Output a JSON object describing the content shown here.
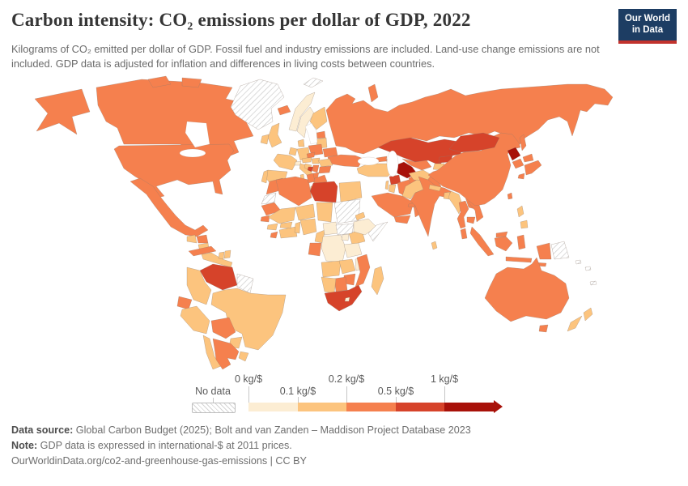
{
  "header": {
    "title": "Carbon intensity: CO₂ emissions per dollar of GDP, 2022",
    "subtitle": "Kilograms of CO₂ emitted per dollar of GDP. Fossil fuel and industry emissions are included. Land-use change emissions are not included. GDP data is adjusted for inflation and differences in living costs between countries.",
    "logo": {
      "line1": "Our World",
      "line2": "in Data",
      "bg_color": "#1d3d63",
      "accent_color": "#c2322d"
    }
  },
  "legend": {
    "no_data_label": "No data",
    "ticks": [
      "0 kg/$",
      "0.1 kg/$",
      "0.2 kg/$",
      "0.5 kg/$",
      "1 kg/$"
    ]
  },
  "footer": {
    "source_label": "Data source:",
    "source_text": " Global Carbon Budget (2025); Bolt and van Zanden – Maddison Project Database 2023",
    "note_label": "Note:",
    "note_text": " GDP data is expressed in international-$ at 2011 prices.",
    "link_text": "OurWorldinData.org/co2-and-greenhouse-gas-emissions | CC BY"
  },
  "chart_data": {
    "type": "choropleth_map",
    "title": "Carbon intensity: CO₂ emissions per dollar of GDP",
    "year": 2022,
    "unit": "kg CO₂ per international-$ of GDP",
    "legend_position": "bottom",
    "bins": [
      {
        "key": "0-0.1",
        "label": "0 kg/$ – 0.1 kg/$",
        "color": "#fcedd3"
      },
      {
        "key": "0.1-0.2",
        "label": "0.1 kg/$ – 0.2 kg/$",
        "color": "#fcc47e"
      },
      {
        "key": "0.2-0.5",
        "label": "0.2 kg/$ – 0.5 kg/$",
        "color": "#f5804e"
      },
      {
        "key": "0.5-1",
        "label": "0.5 kg/$ – 1 kg/$",
        "color": "#d6432a"
      },
      {
        "key": ">1",
        "label": "> 1 kg/$",
        "color": "#a81109"
      },
      {
        "key": "no-data",
        "label": "No data",
        "color": "hatch"
      }
    ],
    "countries": {
      "Canada": "0.2-0.5",
      "United States": "0.2-0.5",
      "Mexico": "0.2-0.5",
      "Greenland": "no-data",
      "Iceland": "0.2-0.5",
      "Guatemala": "0.1-0.2",
      "Honduras": "0.2-0.5",
      "Nicaragua": "0.1-0.2",
      "Costa Rica": "0.1-0.2",
      "Panama": "0.1-0.2",
      "Cuba": "0.2-0.5",
      "Haiti": "0.1-0.2",
      "Dominican Republic": "0.1-0.2",
      "Venezuela": "0.5-1",
      "Colombia": "0.1-0.2",
      "Guyana": "no-data",
      "Suriname": "no-data",
      "Ecuador": "0.2-0.5",
      "Peru": "0.1-0.2",
      "Brazil": "0.1-0.2",
      "Bolivia": "0.2-0.5",
      "Paraguay": "0.1-0.2",
      "Uruguay": "0.1-0.2",
      "Chile": "0.1-0.2",
      "Argentina": "0.2-0.5",
      "Norway": "0-0.1",
      "Sweden": "0-0.1",
      "Finland": "0.1-0.2",
      "Denmark": "0.1-0.2",
      "United Kingdom": "0.1-0.2",
      "Ireland": "0.1-0.2",
      "France": "0.1-0.2",
      "Spain": "0.1-0.2",
      "Portugal": "0.1-0.2",
      "Italy": "0.1-0.2",
      "Germany": "0.1-0.2",
      "Netherlands": "0.1-0.2",
      "Belgium": "0.1-0.2",
      "Switzerland": "0-0.1",
      "Austria": "0.1-0.2",
      "Czechia": "0.2-0.5",
      "Slovakia": "0.2-0.5",
      "Poland": "0.2-0.5",
      "Hungary": "0.1-0.2",
      "Romania": "0.1-0.2",
      "Croatia": "0.1-0.2",
      "Bosnia and Herzegovina": "0.5-1",
      "Serbia": "0.2-0.5",
      "Albania": "0.2-0.5",
      "North Macedonia": "0.2-0.5",
      "Bulgaria": "0.2-0.5",
      "Greece": "0.2-0.5",
      "Estonia": "0.2-0.5",
      "Latvia": "0.1-0.2",
      "Lithuania": "0.1-0.2",
      "Belarus": "0.2-0.5",
      "Ukraine": "0.2-0.5",
      "Moldova": "0.2-0.5",
      "Russia": "0.2-0.5",
      "Svalbard": "no-data",
      "Turkey": "0.1-0.2",
      "Georgia": "0.2-0.5",
      "Armenia": "0.2-0.5",
      "Azerbaijan": "0.2-0.5",
      "Syria": "0.5-1",
      "Israel": "0.1-0.2",
      "Jordan": "0.1-0.2",
      "Iraq": "0.2-0.5",
      "Iran": "0.2-0.5",
      "Saudi Arabia": "0.2-0.5",
      "Yemen": "0.2-0.5",
      "Oman": "0.2-0.5",
      "United Arab Emirates": "0.2-0.5",
      "Kuwait": "0.2-0.5",
      "Qatar": "0.2-0.5",
      "Kazakhstan": "0.5-1",
      "Uzbekistan": "0.2-0.5",
      "Turkmenistan": ">1",
      "Kyrgyzstan": "0.5-1",
      "Tajikistan": "0.1-0.2",
      "Afghanistan": "0.1-0.2",
      "Pakistan": "0.1-0.2",
      "India": "0.2-0.5",
      "Nepal": "0.1-0.2",
      "Bangladesh": "0.1-0.2",
      "Sri Lanka": "0.1-0.2",
      "Myanmar": "0.1-0.2",
      "Thailand": "0.2-0.5",
      "Laos": "0.2-0.5",
      "Vietnam": "0.2-0.5",
      "Cambodia": "0.2-0.5",
      "Malaysia": "0.2-0.5",
      "Indonesia": "0.2-0.5",
      "Philippines": "0.1-0.2",
      "China": "0.2-0.5",
      "Mongolia": "0.5-1",
      "North Korea": ">1",
      "South Korea": "0.2-0.5",
      "Japan": "0.2-0.5",
      "Taiwan": "0.2-0.5",
      "Papua New Guinea": "no-data",
      "Morocco": "0.2-0.5",
      "Western Sahara": "no-data",
      "Algeria": "0.2-0.5",
      "Tunisia": "0.2-0.5",
      "Libya": "0.5-1",
      "Egypt": "0.1-0.2",
      "Mauritania": "0.2-0.5",
      "Senegal": "0.2-0.5",
      "Guinea": "0.1-0.2",
      "Liberia": "0.2-0.5",
      "Côte d'Ivoire": "0.1-0.2",
      "Ghana": "0.1-0.2",
      "Burkina Faso": "0.1-0.2",
      "Benin": "0.1-0.2",
      "Mali": "0.1-0.2",
      "Niger": "0.1-0.2",
      "Chad": "0.1-0.2",
      "Nigeria": "0.1-0.2",
      "Cameroon": "0.1-0.2",
      "Central African Republic": "0-0.1",
      "Gabon": "0.2-0.5",
      "Congo": "0.2-0.5",
      "Democratic Republic of Congo": "0-0.1",
      "Sudan": "no-data",
      "South Sudan": "no-data",
      "Eritrea": "0.1-0.2",
      "Ethiopia": "0-0.1",
      "Somalia": "no-data",
      "Kenya": "0.1-0.2",
      "Uganda": "0-0.1",
      "Tanzania": "0-0.1",
      "Angola": "0.1-0.2",
      "Zambia": "0.1-0.2",
      "Malawi": "0-0.1",
      "Mozambique": "0.2-0.5",
      "Zimbabwe": "0.2-0.5",
      "Botswana": "0.2-0.5",
      "Namibia": "0.1-0.2",
      "South Africa": "0.5-1",
      "Lesotho": "0-0.1",
      "Madagascar": "0.1-0.2",
      "Australia": "0.2-0.5",
      "New Zealand": "0.1-0.2",
      "Solomon Islands": "no-data",
      "New Caledonia": "no-data"
    }
  }
}
